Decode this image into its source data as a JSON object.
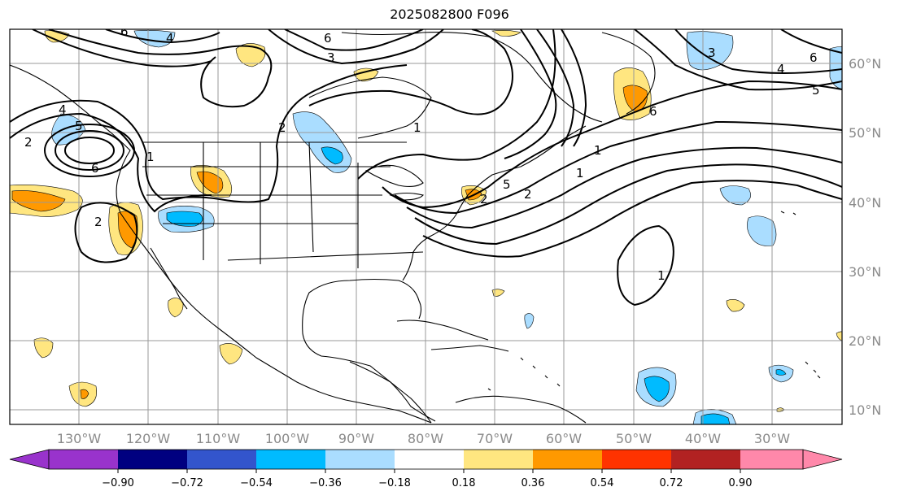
{
  "title": "2025082800 F096",
  "map": {
    "longitude_labels": [
      "130°W",
      "120°W",
      "110°W",
      "100°W",
      "90°W",
      "80°W",
      "70°W",
      "60°W",
      "50°W",
      "40°W",
      "30°W"
    ],
    "latitude_labels": [
      "60°N",
      "50°N",
      "40°N",
      "30°N",
      "20°N",
      "10°N"
    ],
    "contour_labels": [
      "6",
      "4",
      "6",
      "3",
      "2",
      "1",
      "2",
      "4",
      "5",
      "6",
      "1",
      "2",
      "2",
      "1",
      "5",
      "2",
      "1",
      "6",
      "4",
      "5",
      "3",
      "6",
      "1"
    ],
    "colors": {
      "purple": "#9933cc",
      "navy": "#000080",
      "blue": "#3355cc",
      "cyan": "#00bbff",
      "lightblue": "#aaddff",
      "white": "#ffffff",
      "yellow": "#ffe680",
      "orange": "#ff9900",
      "redorange": "#ff3300",
      "darkred": "#b22222",
      "pink": "#ff88aa"
    }
  },
  "colorbar": {
    "ticks": [
      "−0.90",
      "−0.72",
      "−0.54",
      "−0.36",
      "−0.18",
      "0.18",
      "0.36",
      "0.54",
      "0.72",
      "0.90"
    ],
    "colors": [
      "#9933cc",
      "#000080",
      "#3355cc",
      "#00bbff",
      "#aaddff",
      "#ffffff",
      "#ffe680",
      "#ff9900",
      "#ff3300",
      "#b22222",
      "#ff88aa"
    ]
  }
}
